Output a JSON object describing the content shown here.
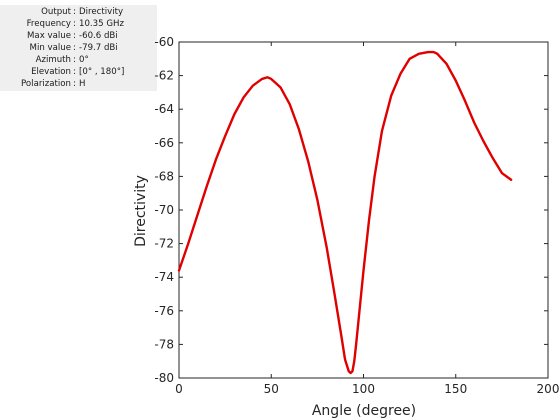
{
  "info_panel": {
    "rows": [
      {
        "label": "Output",
        "value": "Directivity"
      },
      {
        "label": "Frequency",
        "value": "10.35 GHz"
      },
      {
        "label": "Max value",
        "value": "-60.6 dBi"
      },
      {
        "label": "Min value",
        "value": "-79.7 dBi"
      },
      {
        "label": "Azimuth",
        "value": "0°"
      },
      {
        "label": "Elevation",
        "value": "[0° , 180°]"
      },
      {
        "label": "Polarization",
        "value": "H"
      }
    ]
  },
  "chart_data": {
    "type": "line",
    "title": "",
    "xlabel": "Angle (degree)",
    "ylabel": "Directivity",
    "xlim": [
      0,
      200
    ],
    "ylim": [
      -80,
      -60
    ],
    "xticks": [
      0,
      50,
      100,
      150,
      200
    ],
    "yticks": [
      -60,
      -62,
      -64,
      -66,
      -68,
      -70,
      -72,
      -74,
      -76,
      -78,
      -80
    ],
    "grid": false,
    "series": [
      {
        "color": "#e00000",
        "x": [
          0,
          5,
          10,
          15,
          20,
          25,
          30,
          35,
          40,
          45,
          48,
          50,
          55,
          60,
          65,
          70,
          75,
          80,
          84,
          88,
          90,
          92,
          93,
          94,
          95,
          96,
          98,
          100,
          103,
          106,
          110,
          115,
          120,
          125,
          130,
          135,
          138,
          140,
          145,
          150,
          155,
          160,
          165,
          170,
          175,
          180
        ],
        "y": [
          -73.6,
          -72.0,
          -70.3,
          -68.6,
          -67.0,
          -65.6,
          -64.3,
          -63.3,
          -62.6,
          -62.2,
          -62.1,
          -62.2,
          -62.7,
          -63.7,
          -65.2,
          -67.1,
          -69.4,
          -72.2,
          -74.8,
          -77.5,
          -78.9,
          -79.6,
          -79.7,
          -79.6,
          -79.0,
          -78.0,
          -75.8,
          -73.6,
          -70.6,
          -68.0,
          -65.3,
          -63.2,
          -61.9,
          -61.0,
          -60.7,
          -60.6,
          -60.6,
          -60.7,
          -61.3,
          -62.3,
          -63.5,
          -64.8,
          -65.9,
          -66.9,
          -67.8,
          -68.2
        ]
      }
    ]
  }
}
